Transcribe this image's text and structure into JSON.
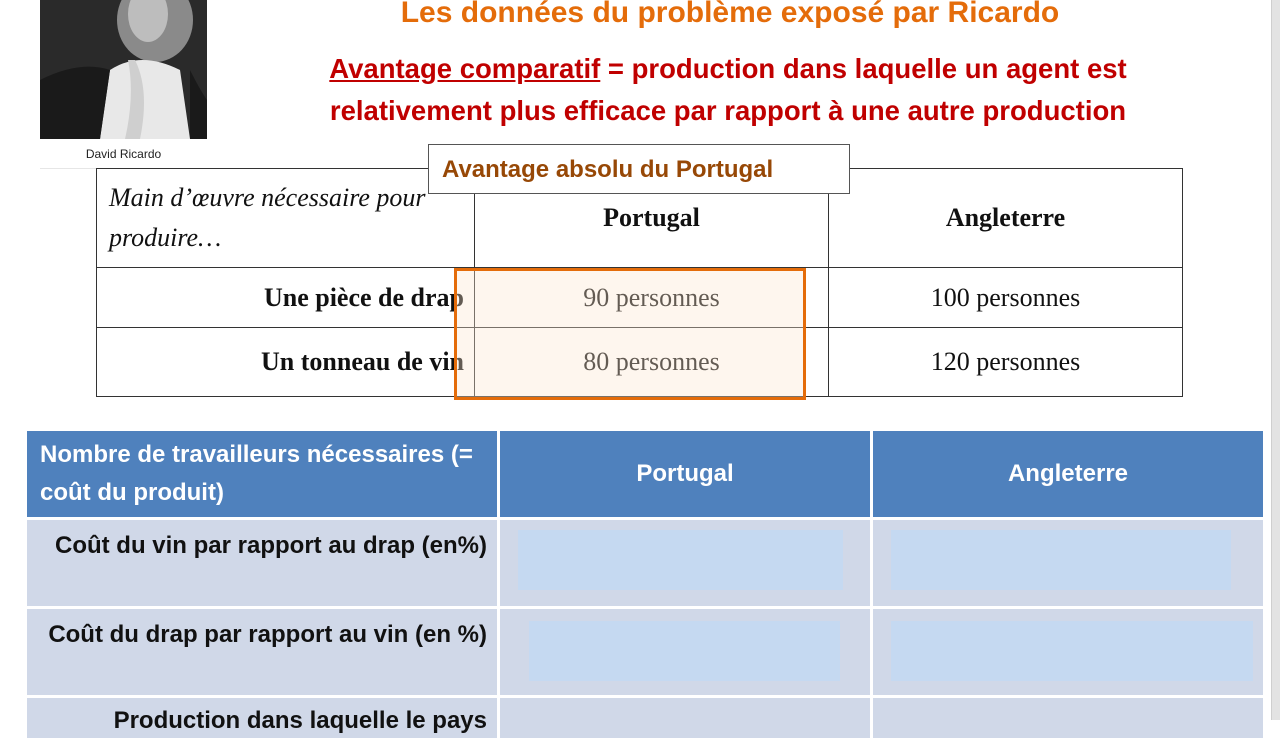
{
  "title": "Les données du problème exposé par Ricardo",
  "definition": {
    "term": "Avantage comparatif",
    "rest": " = production dans laquelle un agent est relativement plus efficace par rapport à une autre production"
  },
  "portrait": {
    "caption": "David Ricardo",
    "icon": "portrait-photo"
  },
  "callout": "Avantage absolu du Portugal",
  "table1": {
    "header": [
      "Main d’œuvre nécessaire pour produire…",
      "Portugal",
      "Angleterre"
    ],
    "rows": [
      {
        "label": "Une pièce de drap",
        "portugal": "90 personnes",
        "angleterre": "100 personnes"
      },
      {
        "label": "Un tonneau de vin",
        "portugal": "80 personnes",
        "angleterre": "120 personnes"
      }
    ]
  },
  "table2": {
    "header": [
      "Nombre de travailleurs nécessaires (= coût du produit)",
      "Portugal",
      "Angleterre"
    ],
    "rows": [
      {
        "label": "Coût du vin par rapport au drap (en%)"
      },
      {
        "label": "Coût du drap par rapport au vin (en %)"
      },
      {
        "label": "Production dans laquelle le pays"
      }
    ]
  },
  "colors": {
    "title": "#e46c0a",
    "definition": "#c00000",
    "callout": "#974806",
    "tableHeader": "#4f81bd",
    "tableRow": "#d0d8e8",
    "highlight": "#e46c0a"
  }
}
